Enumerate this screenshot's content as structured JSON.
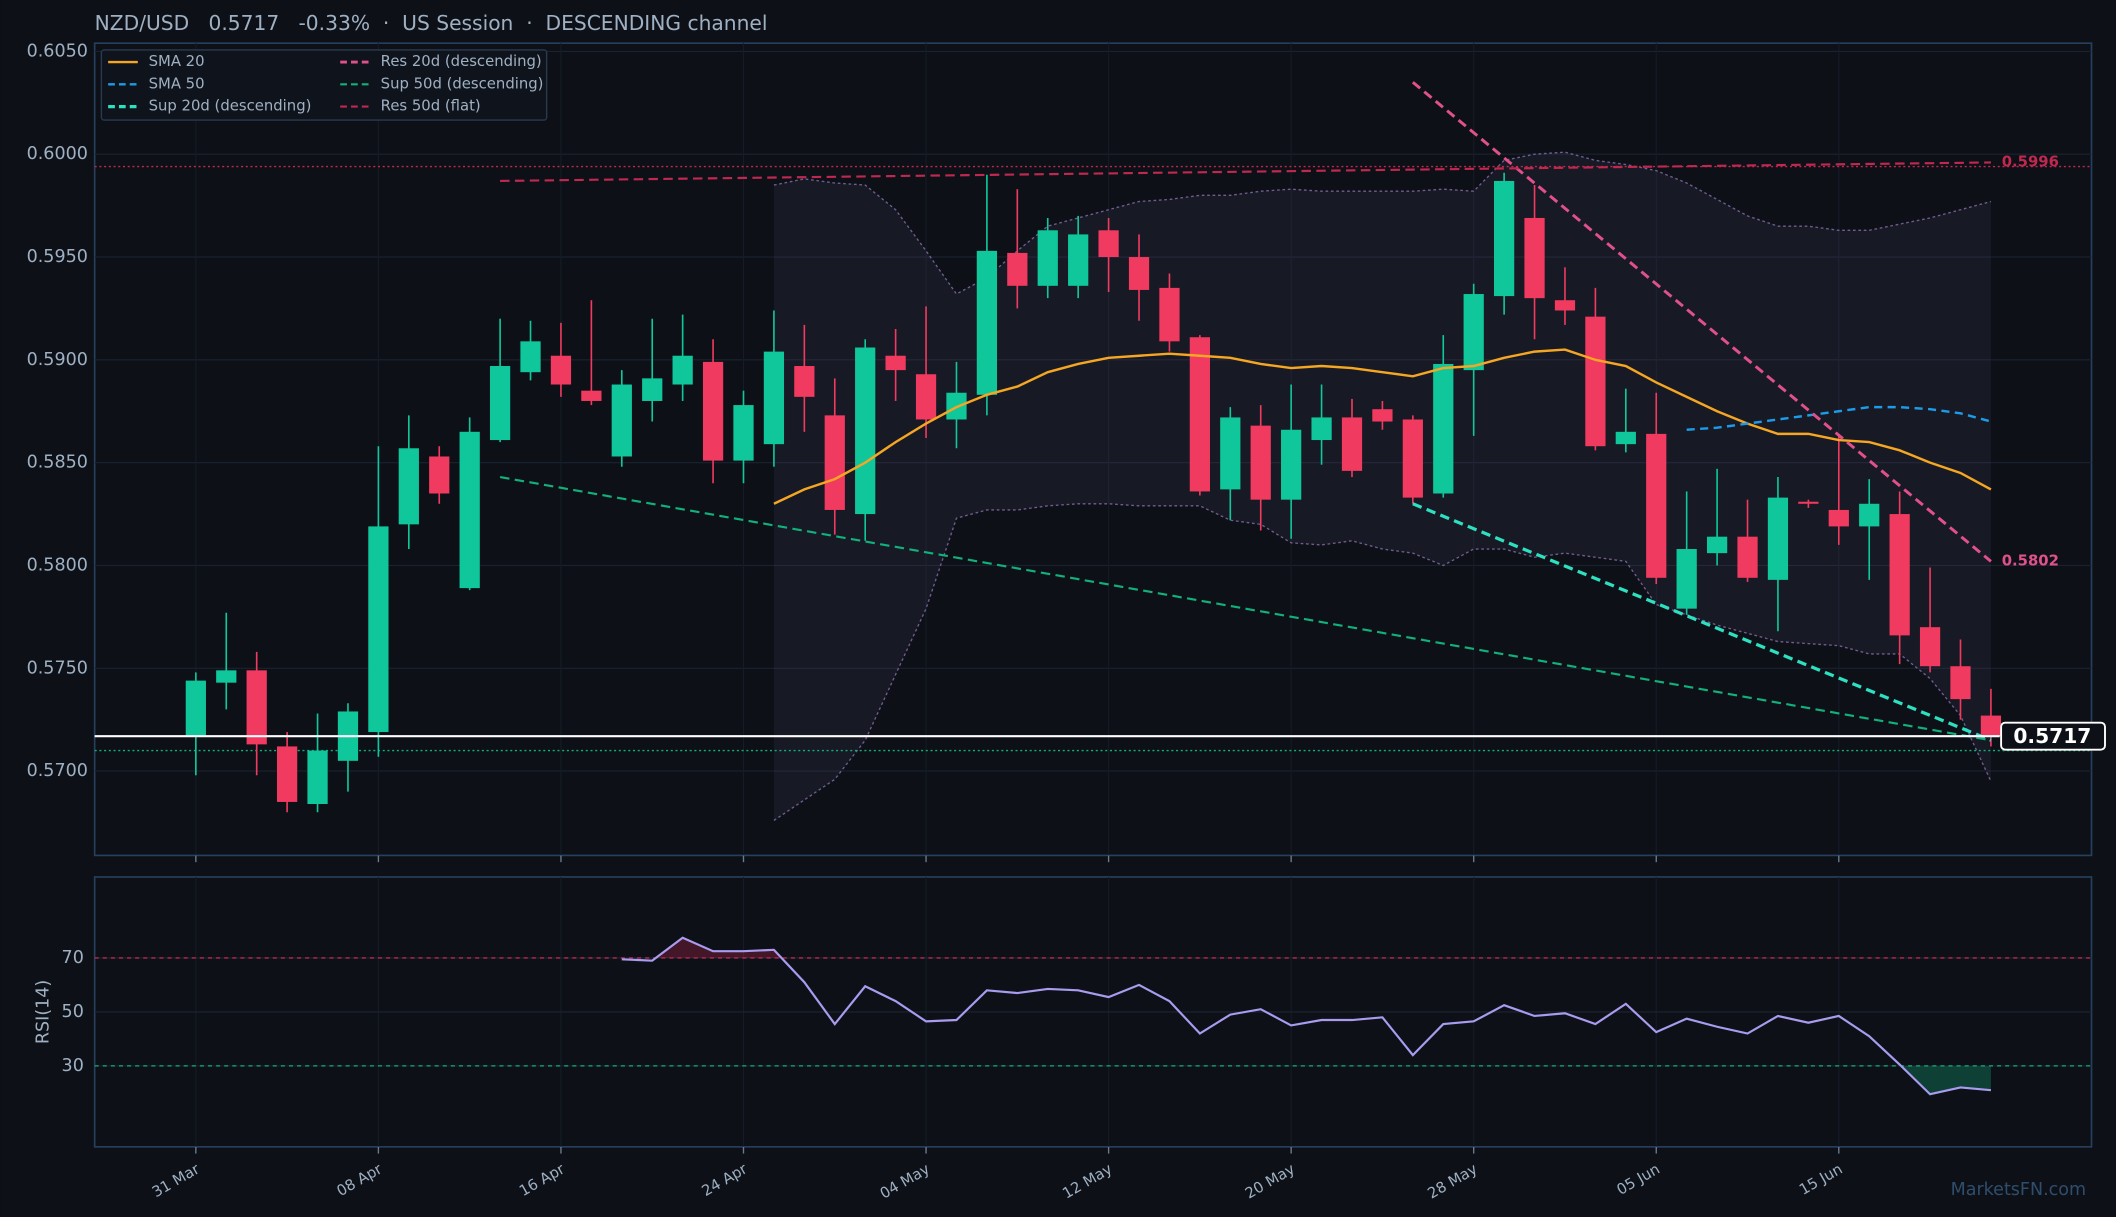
{
  "chart_data": {
    "type": "candlestick",
    "title": "NZD/USD   0.5717   -0.33%  ·  US Session  ·  DESCENDING channel",
    "categories": [
      "31 Mar",
      null,
      null,
      null,
      null,
      null,
      "08 Apr",
      null,
      null,
      null,
      null,
      null,
      "16 Apr",
      null,
      null,
      null,
      null,
      null,
      "24 Apr",
      null,
      null,
      null,
      null,
      null,
      "04 May",
      null,
      null,
      null,
      null,
      null,
      "12 May",
      null,
      null,
      null,
      null,
      null,
      "20 May",
      null,
      null,
      null,
      null,
      null,
      "28 May",
      null,
      null,
      null,
      null,
      null,
      "05 Jun",
      null,
      null,
      null,
      null,
      null,
      "15 Jun",
      null,
      null,
      null,
      null,
      null
    ],
    "open": [
      0.5717,
      0.5743,
      0.5749,
      0.5712,
      0.5684,
      0.5705,
      0.5719,
      0.582,
      0.5853,
      0.5789,
      0.5861,
      0.5894,
      0.5902,
      0.5885,
      0.5853,
      0.588,
      0.5888,
      0.5899,
      0.5851,
      0.5859,
      0.5897,
      0.5873,
      0.5825,
      0.5902,
      0.5893,
      0.5871,
      0.5883,
      0.5952,
      0.5936,
      0.5936,
      0.5963,
      0.595,
      0.5935,
      0.5911,
      0.5837,
      0.5868,
      0.5832,
      0.5861,
      0.5872,
      0.5876,
      0.5871,
      0.5835,
      0.5895,
      0.5931,
      0.5969,
      0.5929,
      0.5921,
      0.5859,
      0.5864,
      0.5779,
      0.5806,
      0.5814,
      0.5793,
      0.5831,
      0.5827,
      0.5819,
      0.5825,
      0.577,
      0.5751,
      0.5727
    ],
    "high": [
      0.5748,
      0.5777,
      0.5758,
      0.5719,
      0.5728,
      0.5733,
      0.5858,
      0.5873,
      0.5858,
      0.5872,
      0.592,
      0.5919,
      0.5918,
      0.5929,
      0.5895,
      0.592,
      0.5922,
      0.591,
      0.5885,
      0.5924,
      0.5917,
      0.5891,
      0.591,
      0.5915,
      0.5926,
      0.5899,
      0.599,
      0.5983,
      0.5969,
      0.597,
      0.5969,
      0.5961,
      0.5942,
      0.5912,
      0.5877,
      0.5878,
      0.5888,
      0.5888,
      0.5881,
      0.588,
      0.5873,
      0.5912,
      0.5937,
      0.5991,
      0.5985,
      0.5945,
      0.5935,
      0.5886,
      0.5884,
      0.5836,
      0.5847,
      0.5832,
      0.5843,
      0.5832,
      0.5863,
      0.5842,
      0.5836,
      0.5799,
      0.5764,
      0.574
    ],
    "low": [
      0.5698,
      0.573,
      0.5698,
      0.568,
      0.568,
      0.569,
      0.5707,
      0.5808,
      0.583,
      0.5788,
      0.586,
      0.589,
      0.5882,
      0.5878,
      0.5848,
      0.587,
      0.588,
      0.584,
      0.584,
      0.5848,
      0.5865,
      0.5815,
      0.5812,
      0.588,
      0.5862,
      0.5857,
      0.5873,
      0.5925,
      0.593,
      0.593,
      0.5933,
      0.5919,
      0.5904,
      0.5834,
      0.5822,
      0.5817,
      0.5813,
      0.5849,
      0.5843,
      0.5866,
      0.583,
      0.5833,
      0.5863,
      0.5922,
      0.591,
      0.5917,
      0.5856,
      0.5855,
      0.5791,
      0.5776,
      0.58,
      0.5792,
      0.5768,
      0.5828,
      0.581,
      0.5793,
      0.5752,
      0.5748,
      0.5725,
      0.5712
    ],
    "close": [
      0.5744,
      0.5749,
      0.5713,
      0.5685,
      0.571,
      0.5729,
      0.5819,
      0.5857,
      0.5835,
      0.5865,
      0.5897,
      0.5909,
      0.5888,
      0.588,
      0.5888,
      0.5891,
      0.5902,
      0.5851,
      0.5878,
      0.5904,
      0.5882,
      0.5827,
      0.5906,
      0.5895,
      0.5871,
      0.5884,
      0.5953,
      0.5936,
      0.5963,
      0.5961,
      0.595,
      0.5934,
      0.5909,
      0.5836,
      0.5872,
      0.5832,
      0.5866,
      0.5872,
      0.5846,
      0.587,
      0.5833,
      0.5898,
      0.5932,
      0.5987,
      0.593,
      0.5924,
      0.5858,
      0.5865,
      0.5794,
      0.5808,
      0.5814,
      0.5794,
      0.5833,
      0.583,
      0.5819,
      0.583,
      0.5766,
      0.5751,
      0.5735,
      0.5717
    ],
    "up_color": "#10c79c",
    "down_color": "#f03a60",
    "ylim": [
      0.5659,
      0.6054
    ],
    "yticks": [
      {
        "value": 0.57,
        "label": "0.5700"
      },
      {
        "value": 0.575,
        "label": "0.5750"
      },
      {
        "value": 0.58,
        "label": "0.5800"
      },
      {
        "value": 0.585,
        "label": "0.5850"
      },
      {
        "value": 0.59,
        "label": "0.5900"
      },
      {
        "value": 0.595,
        "label": "0.5950"
      },
      {
        "value": 0.6,
        "label": "0.6000"
      },
      {
        "value": 0.605,
        "label": "0.6050"
      }
    ],
    "grid": true,
    "legend": "upper left",
    "last_price": 0.5717,
    "levels": [
      {
        "value": 0.5994,
        "color": "#c0284f"
      },
      {
        "value": 0.571,
        "color": "#12b07a"
      }
    ],
    "overlays": [
      {
        "name": "SMA 20",
        "color": "#f5a623",
        "dash": false,
        "values": [
          null,
          null,
          null,
          null,
          null,
          null,
          null,
          null,
          null,
          null,
          null,
          null,
          null,
          null,
          null,
          null,
          null,
          null,
          null,
          0.583,
          0.5837,
          0.5842,
          0.585,
          0.586,
          0.5869,
          0.5877,
          0.5883,
          0.5887,
          0.5894,
          0.5898,
          0.5901,
          0.5902,
          0.5903,
          0.5902,
          0.5901,
          0.5898,
          0.5896,
          0.5897,
          0.5896,
          0.5894,
          0.5892,
          0.5896,
          0.5897,
          0.5901,
          0.5904,
          0.5905,
          0.59,
          0.5897,
          0.5889,
          0.5882,
          0.5875,
          0.5869,
          0.5864,
          0.5864,
          0.5861,
          0.586,
          0.5856,
          0.585,
          0.5845,
          0.5837
        ]
      },
      {
        "name": "SMA 50",
        "color": "#1e9be8",
        "dash": true,
        "values": [
          null,
          null,
          null,
          null,
          null,
          null,
          null,
          null,
          null,
          null,
          null,
          null,
          null,
          null,
          null,
          null,
          null,
          null,
          null,
          null,
          null,
          null,
          null,
          null,
          null,
          null,
          null,
          null,
          null,
          null,
          null,
          null,
          null,
          null,
          null,
          null,
          null,
          null,
          null,
          null,
          null,
          null,
          null,
          null,
          null,
          null,
          null,
          null,
          null,
          0.5866,
          0.5867,
          0.5869,
          0.5871,
          0.5873,
          0.5875,
          0.5877,
          0.5877,
          0.5876,
          0.5874,
          0.587
        ]
      }
    ],
    "band": {
      "color": "#8a6fb0",
      "upper": [
        null,
        null,
        null,
        null,
        null,
        null,
        null,
        null,
        null,
        null,
        null,
        null,
        null,
        null,
        null,
        null,
        null,
        null,
        null,
        0.5985,
        0.5988,
        0.5986,
        0.5985,
        0.5973,
        0.5953,
        0.5932,
        0.594,
        0.5953,
        0.5965,
        0.5969,
        0.5973,
        0.5977,
        0.5978,
        0.598,
        0.598,
        0.5982,
        0.5983,
        0.5982,
        0.5982,
        0.5982,
        0.5982,
        0.5983,
        0.5982,
        0.5997,
        0.6,
        0.6001,
        0.5997,
        0.5995,
        0.5992,
        0.5986,
        0.5978,
        0.597,
        0.5965,
        0.5965,
        0.5963,
        0.5963,
        0.5966,
        0.5969,
        0.5973,
        0.5977
      ],
      "lower": [
        null,
        null,
        null,
        null,
        null,
        null,
        null,
        null,
        null,
        null,
        null,
        null,
        null,
        null,
        null,
        null,
        null,
        null,
        null,
        0.5676,
        0.5686,
        0.5696,
        0.5715,
        0.5747,
        0.5779,
        0.5823,
        0.5827,
        0.5827,
        0.5829,
        0.583,
        0.583,
        0.5829,
        0.5829,
        0.5829,
        0.5822,
        0.582,
        0.5811,
        0.581,
        0.5812,
        0.5808,
        0.5806,
        0.58,
        0.5808,
        0.5808,
        0.5804,
        0.5806,
        0.5804,
        0.5802,
        0.5781,
        0.5776,
        0.5771,
        0.5767,
        0.5763,
        0.5762,
        0.5761,
        0.5757,
        0.5757,
        0.5745,
        0.5727,
        0.5695
      ]
    },
    "trendlines": [
      {
        "name": "Sup 20d (descending)",
        "color": "#2de0c0",
        "width": 2.4,
        "x": [
          40,
          59
        ],
        "values": [
          0.583,
          0.5715
        ]
      },
      {
        "name": "Res 20d (descending)",
        "color": "#e0508a",
        "width": 2.2,
        "x": [
          40,
          59
        ],
        "values": [
          0.6035,
          0.5802
        ],
        "value_labels": [
          null,
          "0.5802"
        ]
      },
      {
        "name": "Sup 50d (descending)",
        "color": "#12b07a",
        "width": 1.6,
        "x": [
          10,
          59
        ],
        "values": [
          0.5843,
          0.5715
        ]
      },
      {
        "name": "Res 50d (flat)",
        "color": "#c0284f",
        "width": 1.6,
        "x": [
          10,
          59
        ],
        "values": [
          0.5987,
          0.5996
        ],
        "value_labels": [
          null,
          "0.5996"
        ]
      }
    ],
    "rsi": {
      "label": "RSI(14)",
      "color": "#a99cf0",
      "ylim": [
        0,
        100
      ],
      "yticks": [
        30,
        50,
        70
      ],
      "overbought": 70,
      "oversold": 30,
      "values": [
        null,
        null,
        null,
        null,
        null,
        null,
        null,
        null,
        null,
        null,
        null,
        null,
        null,
        null,
        69.5,
        69,
        77.5,
        72.5,
        72.5,
        73,
        61,
        45.5,
        59.5,
        54,
        46.5,
        47,
        58,
        57,
        58.5,
        58,
        55.5,
        60,
        54,
        42,
        49,
        51,
        45,
        47,
        47,
        48,
        34,
        45.5,
        46.5,
        52.5,
        48.5,
        49.5,
        45.5,
        53,
        42.5,
        47.5,
        44.5,
        42,
        48.5,
        46,
        48.5,
        41,
        30.5,
        19.5,
        22,
        21
      ]
    },
    "watermark": "MarketsFN.com"
  }
}
